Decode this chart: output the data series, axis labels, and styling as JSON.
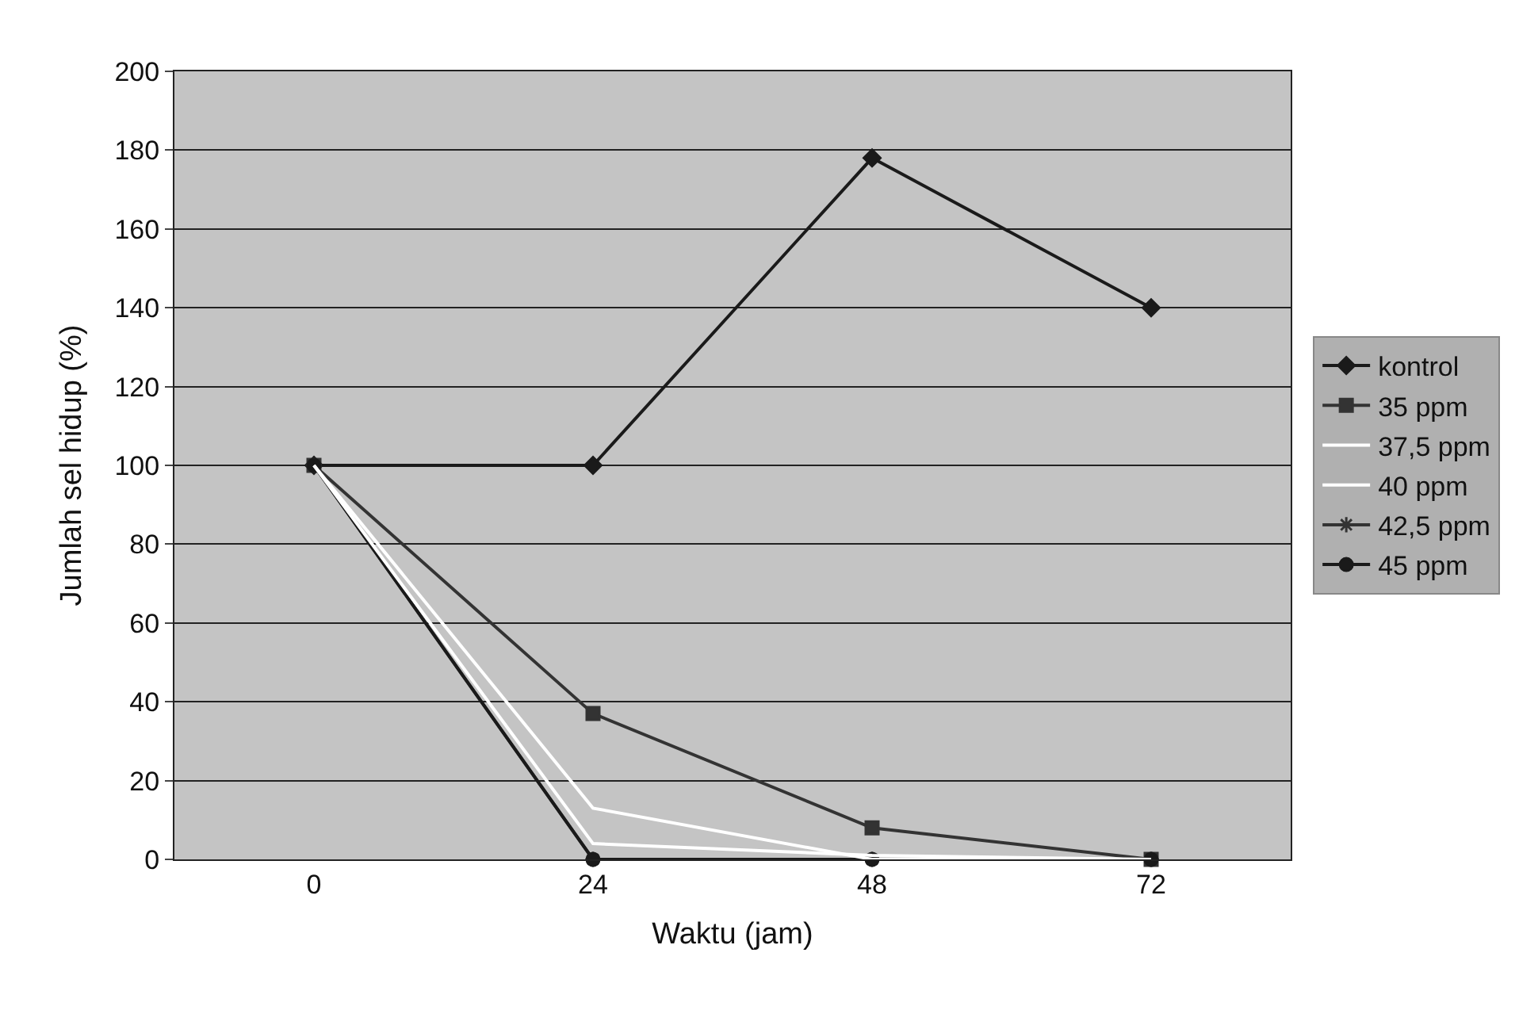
{
  "chart_data": {
    "type": "line",
    "xlabel": "Waktu (jam)",
    "ylabel": "Jumlah sel hidup (%)",
    "categories": [
      "0",
      "24",
      "48",
      "72"
    ],
    "series": [
      {
        "name": "kontrol",
        "color": "#1a1a1a",
        "marker": "diamond",
        "values": [
          100,
          100,
          178,
          140
        ]
      },
      {
        "name": "35 ppm",
        "color": "#333333",
        "marker": "square",
        "values": [
          100,
          37,
          8,
          0
        ]
      },
      {
        "name": "37,5 ppm",
        "color": "#ffffff",
        "marker": "none",
        "values": [
          100,
          13,
          0,
          0
        ]
      },
      {
        "name": "40 ppm",
        "color": "#ffffff",
        "marker": "none",
        "values": [
          100,
          4,
          1,
          0
        ]
      },
      {
        "name": "42,5 ppm",
        "color": "#333333",
        "marker": "cross",
        "values": [
          100,
          0,
          0,
          0
        ]
      },
      {
        "name": "45 ppm",
        "color": "#1a1a1a",
        "marker": "circle",
        "values": [
          100,
          0,
          0,
          0
        ]
      }
    ],
    "ylim": [
      0,
      200
    ],
    "yticks": [
      0,
      20,
      40,
      60,
      80,
      100,
      120,
      140,
      160,
      180,
      200
    ],
    "grid": "y",
    "legend": "right",
    "line_style": "solid"
  }
}
